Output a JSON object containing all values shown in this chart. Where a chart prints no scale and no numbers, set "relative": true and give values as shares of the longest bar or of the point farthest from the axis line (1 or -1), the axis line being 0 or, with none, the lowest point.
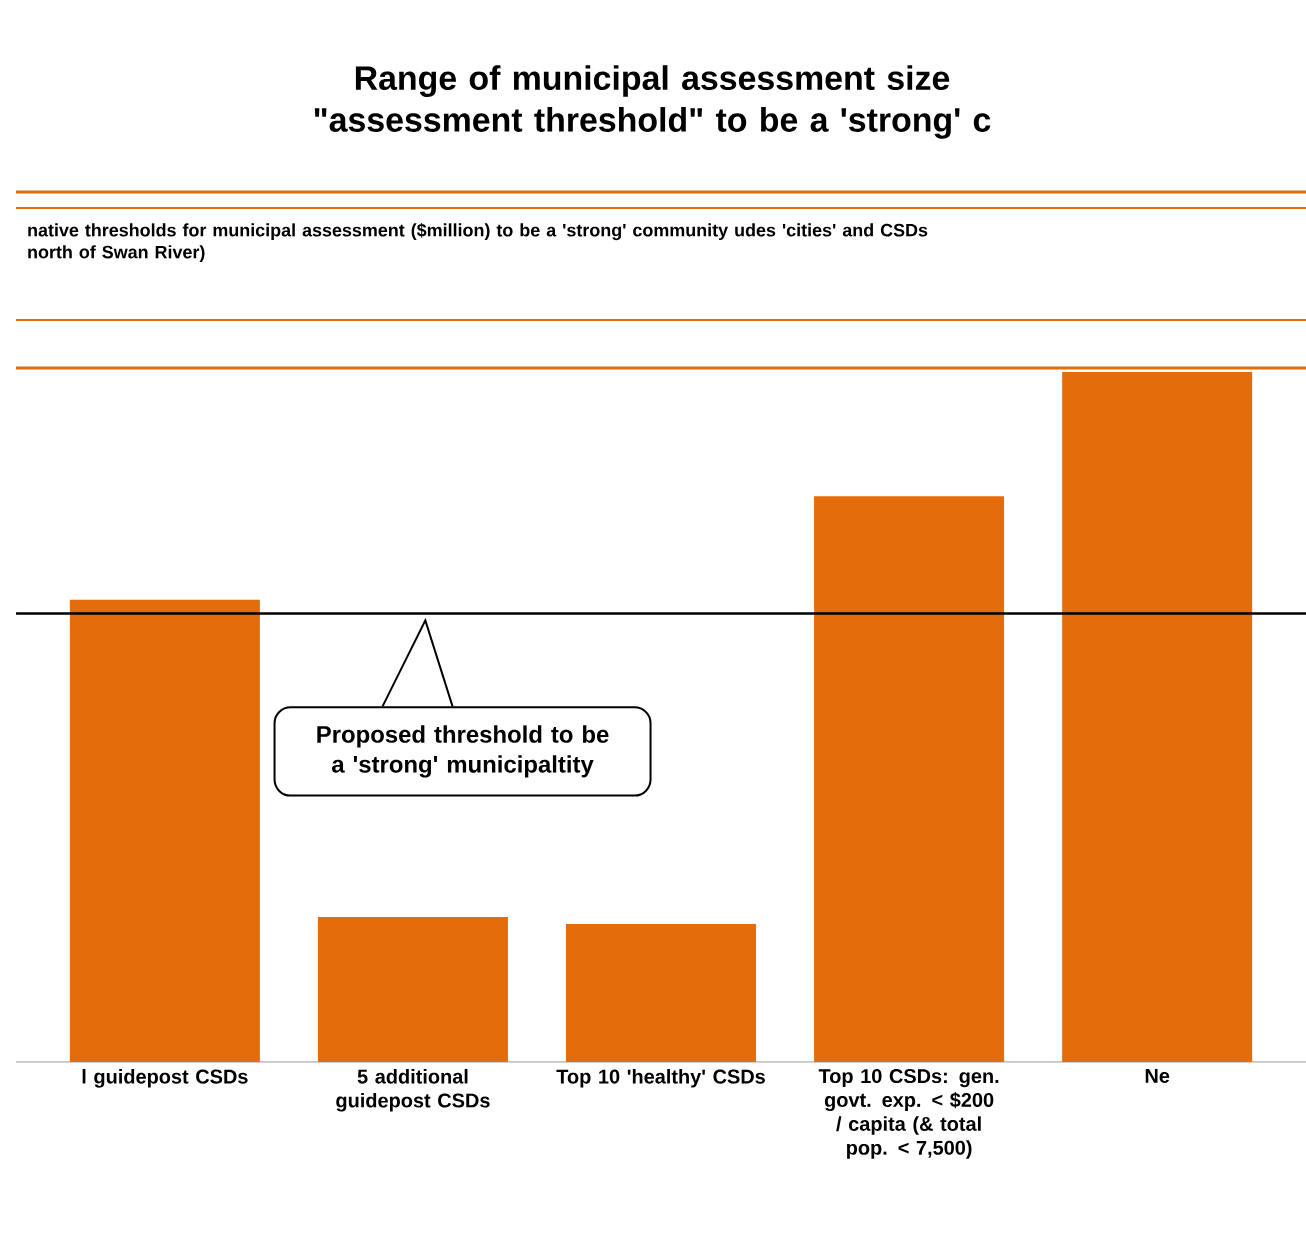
{
  "chart_data": {
    "type": "bar",
    "title": "Range of municipal assessment size \"assessment threshold\" to be a 'strong' c",
    "subtitle": "native thresholds for municipal assessment ($million)  to be a 'strong' community udes 'cities' and CSDs north of Swan  River)",
    "categories": [
      "l guidepost CSDs",
      "5 additional guidepost CSDs",
      "Top 10 'healthy' CSDs",
      "Top 10 CSDs: gen. govt. exp. < $200 / capita (& total pop. < 7,500)",
      "Ne"
    ],
    "values": [
      0.67,
      0.21,
      0.2,
      0.82,
      1
    ],
    "color": "#e46c0a",
    "relative": true,
    "ref_lines": [
      {
        "axis": "y",
        "value": 0.65,
        "label": "Proposed threshold to be a 'strong' municipaltity",
        "color": "#000000"
      }
    ]
  }
}
